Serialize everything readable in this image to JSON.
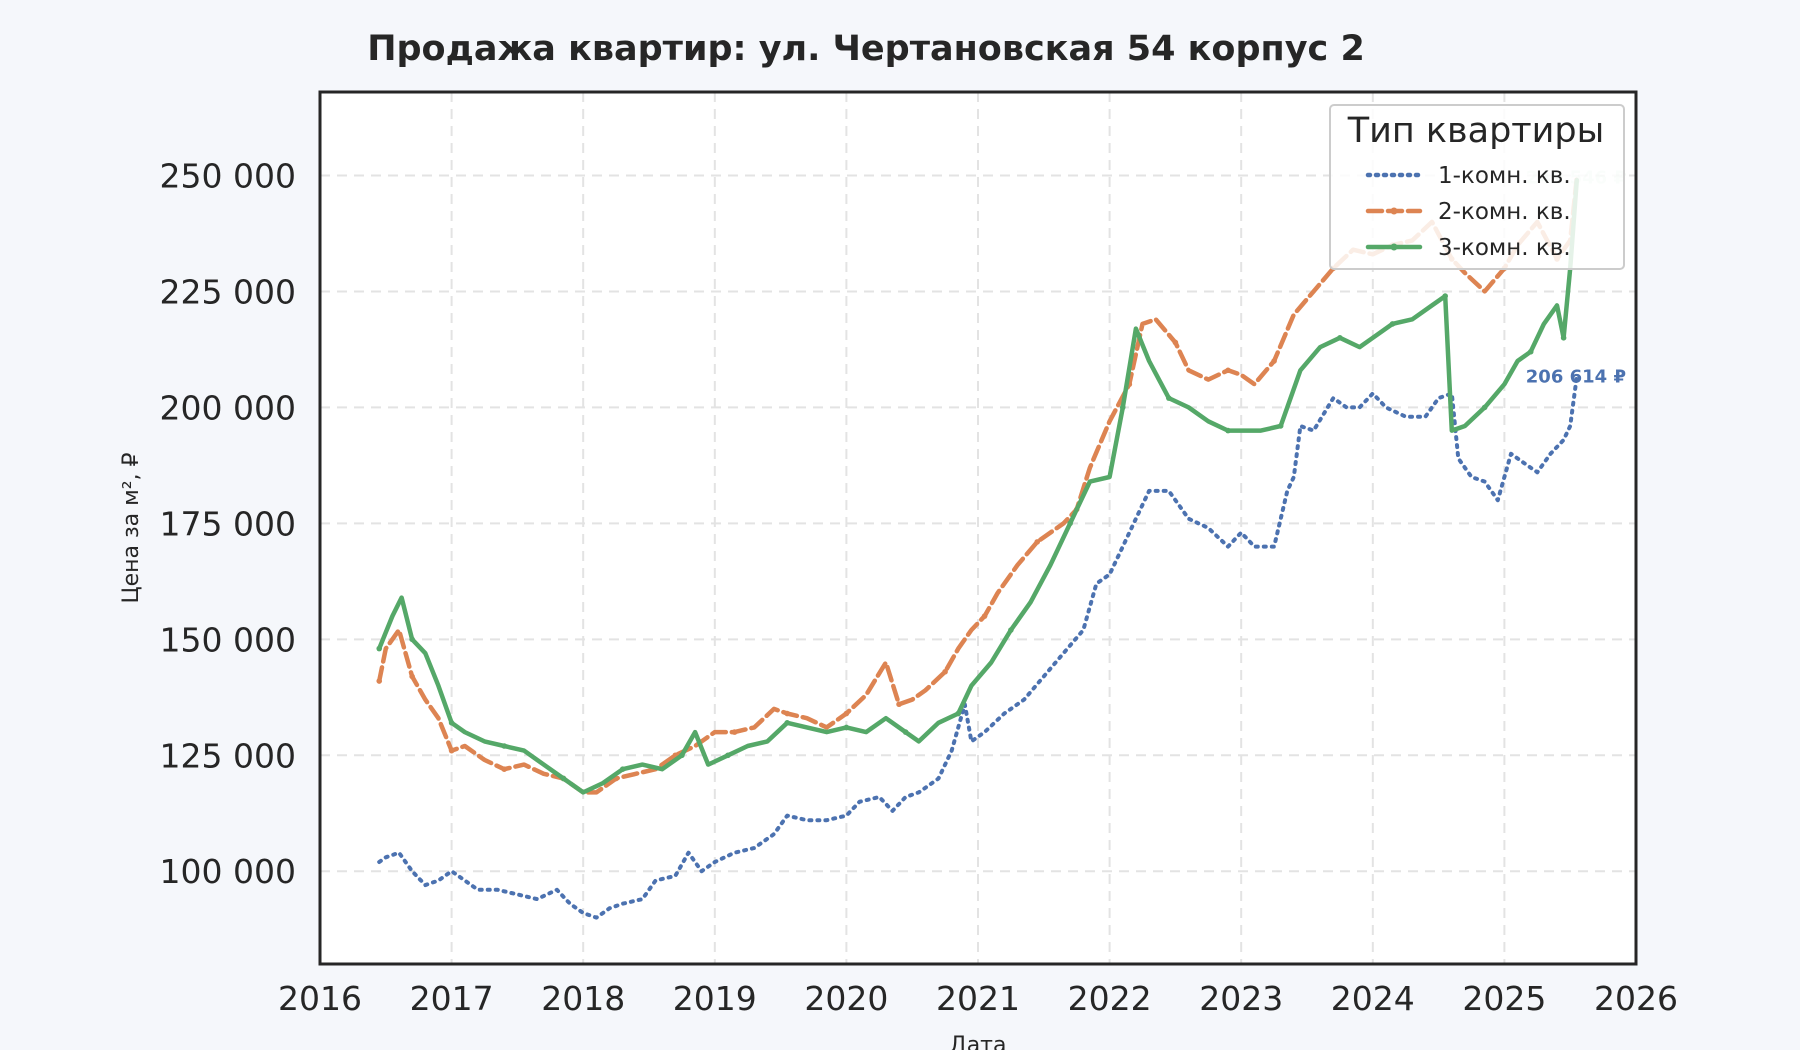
{
  "chart_data": {
    "type": "line",
    "title": "Продажа квартир: ул. Чертановская 54 корпус 2",
    "xlabel": "Дата",
    "ylabel": "Цена за м², ₽",
    "xlim": [
      2016,
      2026
    ],
    "ylim": [
      80000,
      268000
    ],
    "x_ticks": [
      "2016",
      "2017",
      "2018",
      "2019",
      "2020",
      "2021",
      "2022",
      "2023",
      "2024",
      "2025",
      "2026"
    ],
    "y_ticks": [
      "100 000",
      "125 000",
      "150 000",
      "175 000",
      "200 000",
      "225 000",
      "250 000"
    ],
    "grid": true,
    "legend": {
      "title": "Тип квартиры",
      "position": "top-right"
    },
    "end_labels": [
      "206 614 ₽",
      "249 546 ₽"
    ],
    "series": [
      {
        "name": "1-комн. кв.",
        "color": "#4c72b0",
        "style": "dotted",
        "x": [
          2016.45,
          2016.5,
          2016.6,
          2016.7,
          2016.8,
          2016.9,
          2017.0,
          2017.1,
          2017.2,
          2017.35,
          2017.5,
          2017.65,
          2017.8,
          2017.9,
          2018.0,
          2018.1,
          2018.2,
          2018.3,
          2018.45,
          2018.55,
          2018.7,
          2018.8,
          2018.9,
          2019.0,
          2019.15,
          2019.3,
          2019.45,
          2019.55,
          2019.7,
          2019.85,
          2020.0,
          2020.1,
          2020.25,
          2020.35,
          2020.45,
          2020.55,
          2020.7,
          2020.8,
          2020.9,
          2020.95,
          2021.05,
          2021.2,
          2021.35,
          2021.5,
          2021.65,
          2021.8,
          2021.9,
          2022.0,
          2022.1,
          2022.2,
          2022.3,
          2022.45,
          2022.6,
          2022.75,
          2022.9,
          2023.0,
          2023.1,
          2023.25,
          2023.35,
          2023.4,
          2023.45,
          2023.55,
          2023.7,
          2023.8,
          2023.9,
          2024.0,
          2024.1,
          2024.25,
          2024.4,
          2024.5,
          2024.6,
          2024.65,
          2024.75,
          2024.85,
          2024.95,
          2025.05,
          2025.15,
          2025.25,
          2025.35,
          2025.45,
          2025.5,
          2025.55
        ],
        "y": [
          102000,
          103000,
          104000,
          100000,
          97000,
          98000,
          100000,
          98000,
          96000,
          96000,
          95000,
          94000,
          96000,
          93000,
          91000,
          90000,
          92000,
          93000,
          94000,
          98000,
          99000,
          104000,
          100000,
          102000,
          104000,
          105000,
          108000,
          112000,
          111000,
          111000,
          112000,
          115000,
          116000,
          113000,
          116000,
          117000,
          120000,
          126000,
          136000,
          128000,
          130000,
          134000,
          137000,
          142000,
          147000,
          152000,
          162000,
          164000,
          170000,
          176000,
          182000,
          182000,
          176000,
          174000,
          170000,
          173000,
          170000,
          170000,
          182000,
          185000,
          196000,
          195000,
          202000,
          200000,
          200000,
          203000,
          200000,
          198000,
          198000,
          202000,
          203000,
          189000,
          185000,
          184000,
          180000,
          190000,
          188000,
          186000,
          190000,
          193000,
          196000,
          206614
        ]
      },
      {
        "name": "2-комн. кв.",
        "color": "#dd8452",
        "style": "dashed",
        "x": [
          2016.45,
          2016.5,
          2016.6,
          2016.7,
          2016.8,
          2016.9,
          2017.0,
          2017.1,
          2017.25,
          2017.4,
          2017.55,
          2017.7,
          2017.85,
          2018.0,
          2018.1,
          2018.25,
          2018.4,
          2018.55,
          2018.7,
          2018.85,
          2019.0,
          2019.15,
          2019.3,
          2019.45,
          2019.55,
          2019.7,
          2019.85,
          2020.0,
          2020.15,
          2020.3,
          2020.4,
          2020.5,
          2020.6,
          2020.75,
          2020.85,
          2020.95,
          2021.05,
          2021.15,
          2021.3,
          2021.45,
          2021.55,
          2021.65,
          2021.75,
          2021.85,
          2022.0,
          2022.15,
          2022.25,
          2022.35,
          2022.5,
          2022.6,
          2022.75,
          2022.9,
          2023.0,
          2023.1,
          2023.25,
          2023.4,
          2023.55,
          2023.7,
          2023.85,
          2024.0,
          2024.15,
          2024.3,
          2024.45,
          2024.6,
          2024.7,
          2024.85,
          2025.0,
          2025.1,
          2025.25,
          2025.4,
          2025.5,
          2025.55
        ],
        "y": [
          141000,
          148000,
          152000,
          142000,
          137000,
          133000,
          126000,
          127000,
          124000,
          122000,
          123000,
          121000,
          120000,
          117000,
          117000,
          120000,
          121000,
          122000,
          125000,
          127000,
          130000,
          130000,
          131000,
          135000,
          134000,
          133000,
          131000,
          134000,
          138000,
          145000,
          136000,
          137000,
          139000,
          143000,
          148000,
          152000,
          155000,
          160000,
          166000,
          171000,
          173000,
          175000,
          178000,
          187000,
          197000,
          205000,
          218000,
          219000,
          214000,
          208000,
          206000,
          208000,
          207000,
          205000,
          210000,
          220000,
          225000,
          230000,
          234000,
          233000,
          235000,
          236000,
          240000,
          232000,
          229000,
          225000,
          230000,
          235000,
          240000,
          232000,
          236000,
          249546
        ]
      },
      {
        "name": "3-комн. кв.",
        "color": "#55a868",
        "style": "solid",
        "x": [
          2016.45,
          2016.55,
          2016.62,
          2016.7,
          2016.8,
          2016.9,
          2017.0,
          2017.1,
          2017.25,
          2017.4,
          2017.55,
          2017.7,
          2017.85,
          2018.0,
          2018.15,
          2018.3,
          2018.45,
          2018.6,
          2018.75,
          2018.85,
          2018.95,
          2019.1,
          2019.25,
          2019.4,
          2019.55,
          2019.7,
          2019.85,
          2020.0,
          2020.15,
          2020.3,
          2020.45,
          2020.55,
          2020.7,
          2020.85,
          2020.95,
          2021.1,
          2021.25,
          2021.4,
          2021.55,
          2021.7,
          2021.85,
          2022.0,
          2022.1,
          2022.2,
          2022.3,
          2022.45,
          2022.6,
          2022.75,
          2022.9,
          2023.0,
          2023.15,
          2023.3,
          2023.45,
          2023.6,
          2023.75,
          2023.9,
          2024.0,
          2024.15,
          2024.3,
          2024.45,
          2024.55,
          2024.6,
          2024.7,
          2024.85,
          2025.0,
          2025.1,
          2025.2,
          2025.3,
          2025.4,
          2025.45,
          2025.5,
          2025.55
        ],
        "y": [
          148000,
          155000,
          159000,
          150000,
          147000,
          140000,
          132000,
          130000,
          128000,
          127000,
          126000,
          123000,
          120000,
          117000,
          119000,
          122000,
          123000,
          122000,
          125000,
          130000,
          123000,
          125000,
          127000,
          128000,
          132000,
          131000,
          130000,
          131000,
          130000,
          133000,
          130000,
          128000,
          132000,
          134000,
          140000,
          145000,
          152000,
          158000,
          166000,
          175000,
          184000,
          185000,
          200000,
          217000,
          210000,
          202000,
          200000,
          197000,
          195000,
          195000,
          195000,
          196000,
          208000,
          213000,
          215000,
          213000,
          215000,
          218000,
          219000,
          222000,
          224000,
          195000,
          196000,
          200000,
          205000,
          210000,
          212000,
          218000,
          222000,
          215000,
          230000,
          249000
        ]
      }
    ]
  }
}
